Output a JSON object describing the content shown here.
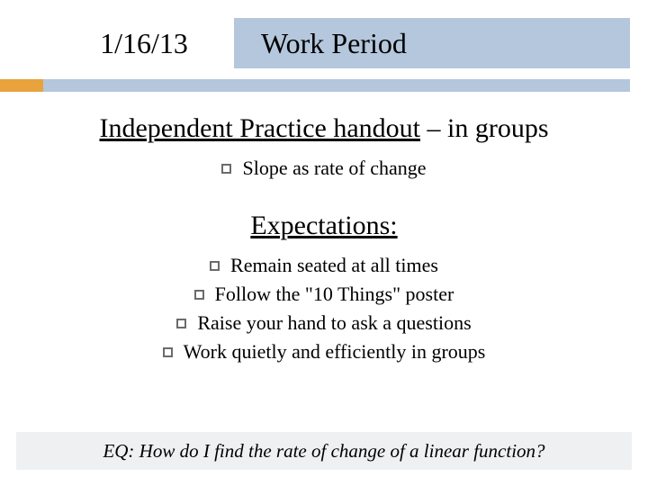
{
  "colors": {
    "title_main_bg": "#b4c7dc",
    "title_date_bg": "#ffffff",
    "accent_block": "#e8a33d",
    "accent_line": "#b4c7dc",
    "footer_bg": "#eef0f2",
    "bullet_border": "#6b6b6b",
    "page_bg": "#ffffff",
    "text": "#000000"
  },
  "typography": {
    "title_fontsize": 32,
    "heading_fontsize": 30,
    "body_fontsize": 22,
    "footer_fontsize": 21,
    "font_family": "Georgia"
  },
  "title": {
    "date": "1/16/13",
    "main": "Work Period"
  },
  "section1": {
    "heading_underlined": "Independent Practice handout",
    "heading_rest": " – in groups",
    "bullets": [
      "Slope as rate of change"
    ]
  },
  "section2": {
    "heading": "Expectations:",
    "bullets": [
      "Remain seated at all times",
      "Follow the \"10 Things\" poster",
      "Raise your hand to ask a questions",
      "Work quietly and efficiently in groups"
    ]
  },
  "footer": {
    "text": "EQ: How do I find the rate of change of a linear function?"
  }
}
